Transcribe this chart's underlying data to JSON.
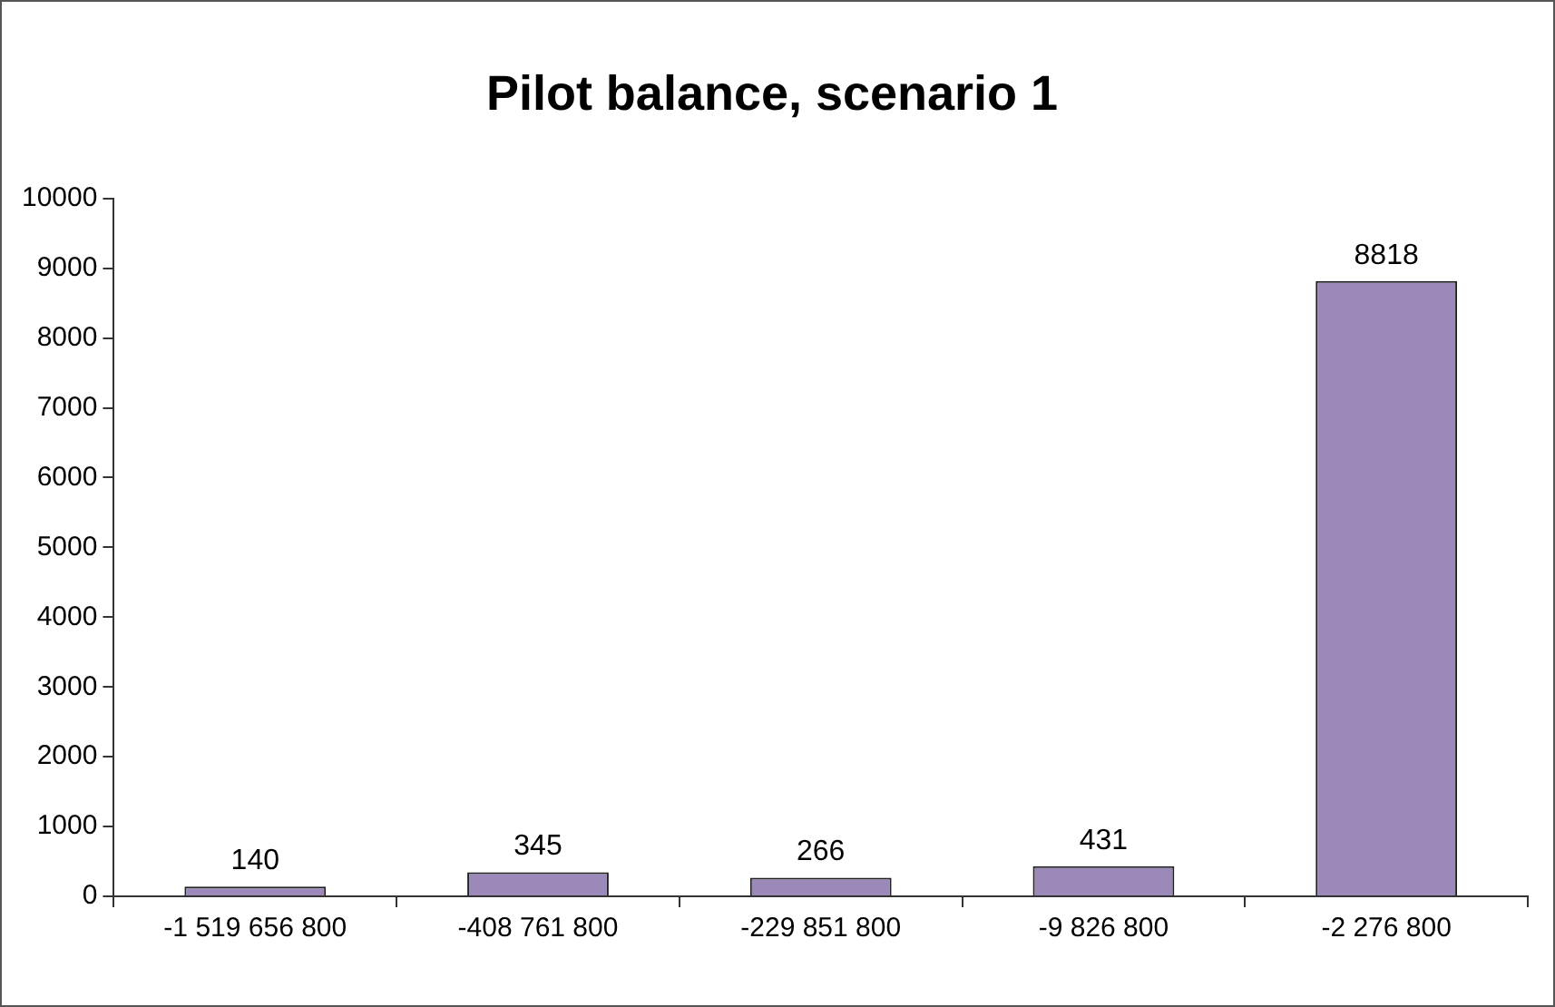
{
  "chart_data": {
    "type": "bar",
    "title": "Pilot balance, scenario 1",
    "categories": [
      "-1 519 656 800",
      "-408 761 800",
      "-229 851 800",
      "-9 826 800",
      "-2 276 800"
    ],
    "values": [
      140,
      345,
      266,
      431,
      8818
    ],
    "color": "#9b8ab9",
    "ylim": [
      0,
      10000
    ],
    "yticks": [
      0,
      1000,
      2000,
      3000,
      4000,
      5000,
      6000,
      7000,
      8000,
      9000,
      10000
    ],
    "grid": false,
    "legend": false,
    "data_labels": true
  }
}
